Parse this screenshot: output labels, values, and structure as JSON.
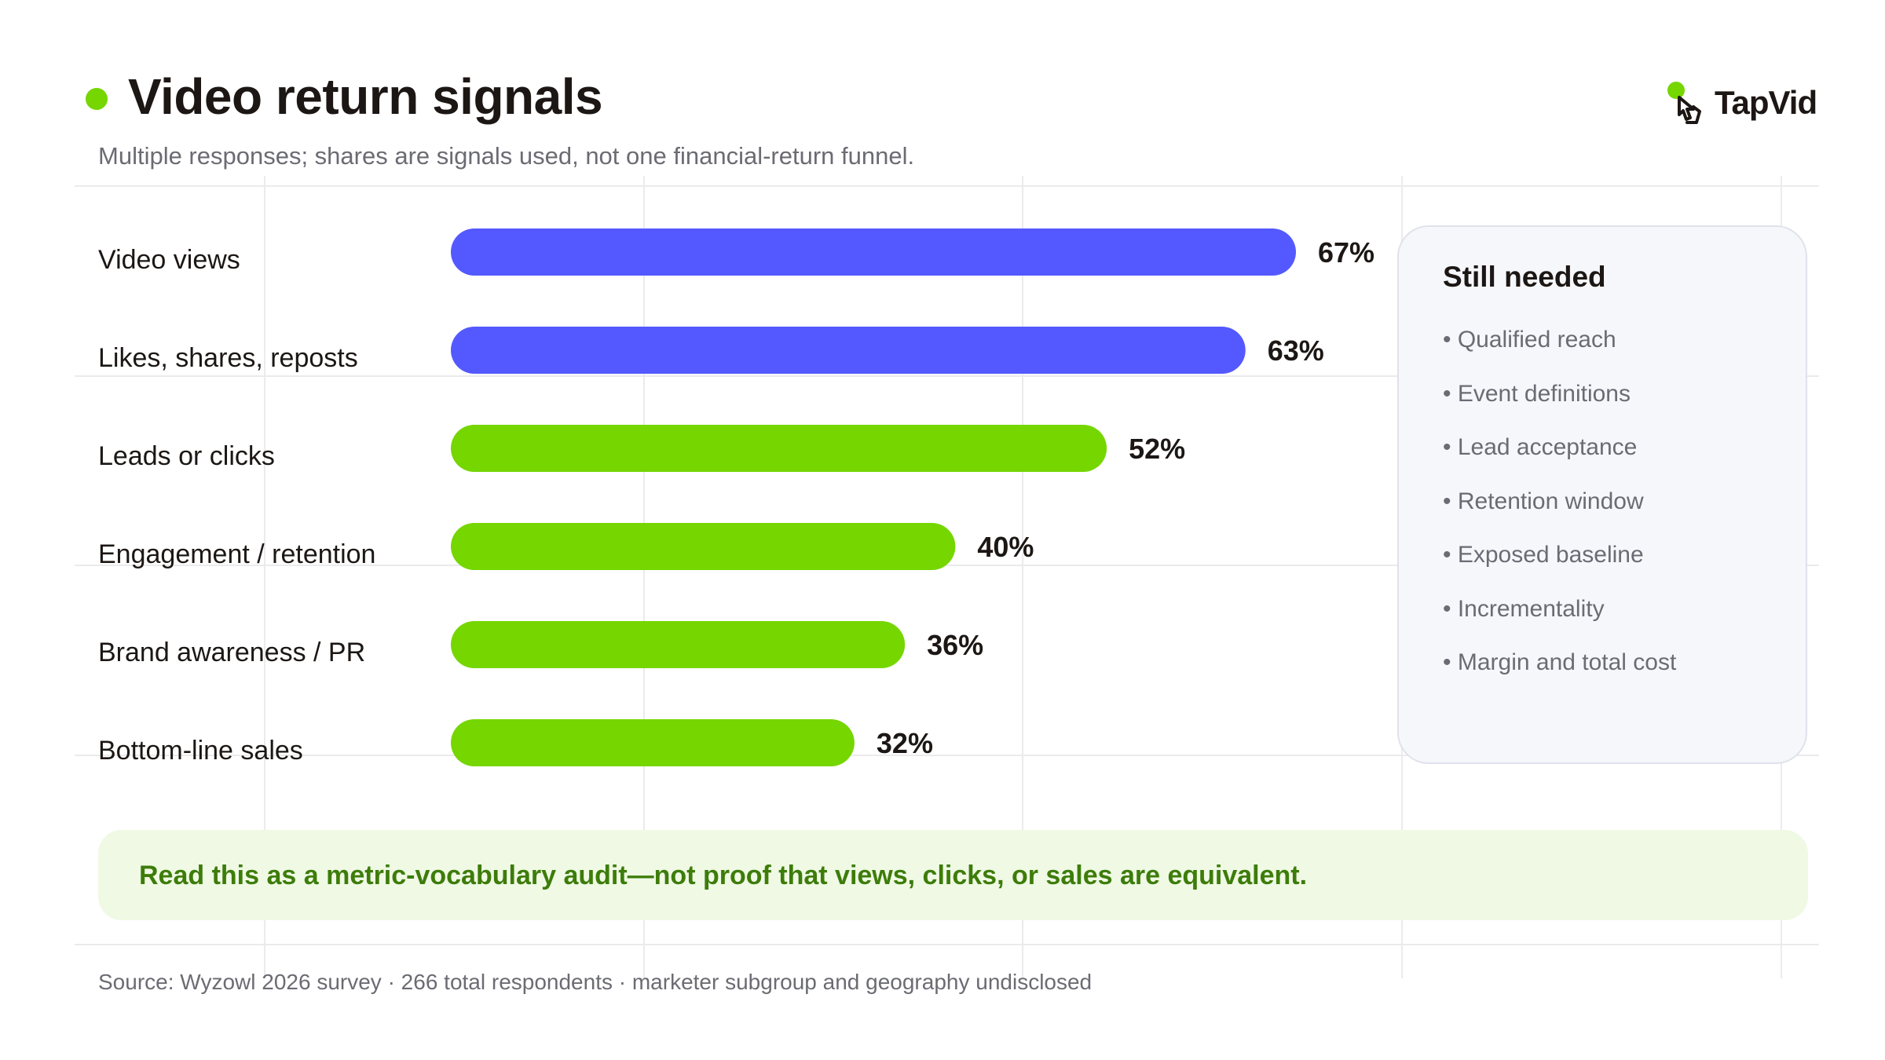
{
  "header": {
    "title": "Video return signals",
    "subtitle": "Multiple responses; shares are signals used, not one financial-return funnel."
  },
  "brand": {
    "name": "TapVid",
    "icon": "pointer-hand-icon"
  },
  "colors": {
    "primary_blue": "#5459ff",
    "primary_green": "#75d600",
    "callout_text": "#3d7c0a",
    "callout_bg": "#eff9e4",
    "muted_text": "#6b6b73"
  },
  "chart_data": {
    "type": "bar",
    "orientation": "horizontal",
    "categories": [
      "Video views",
      "Likes, shares, reposts",
      "Leads or clicks",
      "Engagement / retention",
      "Brand awareness / PR",
      "Bottom-line sales"
    ],
    "values": [
      67,
      63,
      52,
      40,
      36,
      32
    ],
    "value_labels": [
      "67%",
      "63%",
      "52%",
      "40%",
      "36%",
      "32%"
    ],
    "bar_colors": [
      "#5459ff",
      "#5459ff",
      "#75d600",
      "#75d600",
      "#75d600",
      "#75d600"
    ],
    "unit": "%",
    "xlim": [
      0,
      67
    ],
    "grid": true
  },
  "panel": {
    "title": "Still needed",
    "items": [
      "Qualified reach",
      "Event definitions",
      "Lead acceptance",
      "Retention window",
      "Exposed baseline",
      "Incrementality",
      "Margin and total cost"
    ]
  },
  "callout": {
    "text": "Read this as a metric-vocabulary audit—not proof that views, clicks, or sales are equivalent."
  },
  "footer": {
    "source": "Source: Wyzowl 2026 survey · 266 total respondents · marketer subgroup and geography undisclosed"
  }
}
